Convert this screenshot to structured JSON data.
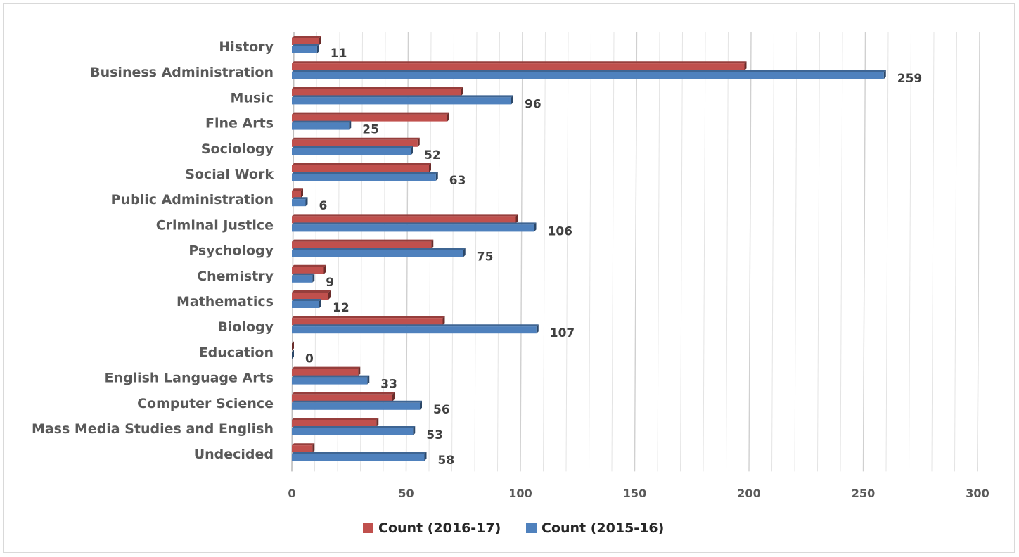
{
  "chart_data": {
    "type": "bar",
    "orientation": "horizontal",
    "title": "",
    "xlabel": "",
    "ylabel": "",
    "xlim": [
      0,
      300
    ],
    "xticks": [
      0,
      50,
      100,
      150,
      200,
      250,
      300
    ],
    "grid": true,
    "legend_position": "bottom",
    "categories": [
      "History",
      "Business Administration",
      "Music",
      "Fine Arts",
      "Sociology",
      "Social Work",
      "Public Administration",
      "Criminal Justice",
      "Psychology",
      "Chemistry",
      "Mathematics",
      "Biology",
      "Education",
      "English Language Arts",
      "Computer Science",
      "Mass Media Studies and English",
      "Undecided"
    ],
    "series": [
      {
        "name": "Count (2016-17)",
        "color": "#c0504d",
        "values": [
          12,
          198,
          74,
          68,
          55,
          60,
          4,
          98,
          61,
          14,
          16,
          66,
          0,
          29,
          44,
          37,
          9
        ],
        "labeled": false
      },
      {
        "name": "Count  (2015-16)",
        "color": "#4f81bd",
        "values": [
          11,
          259,
          96,
          25,
          52,
          63,
          6,
          106,
          75,
          9,
          12,
          107,
          0,
          33,
          56,
          53,
          58
        ],
        "labeled": true
      }
    ]
  }
}
